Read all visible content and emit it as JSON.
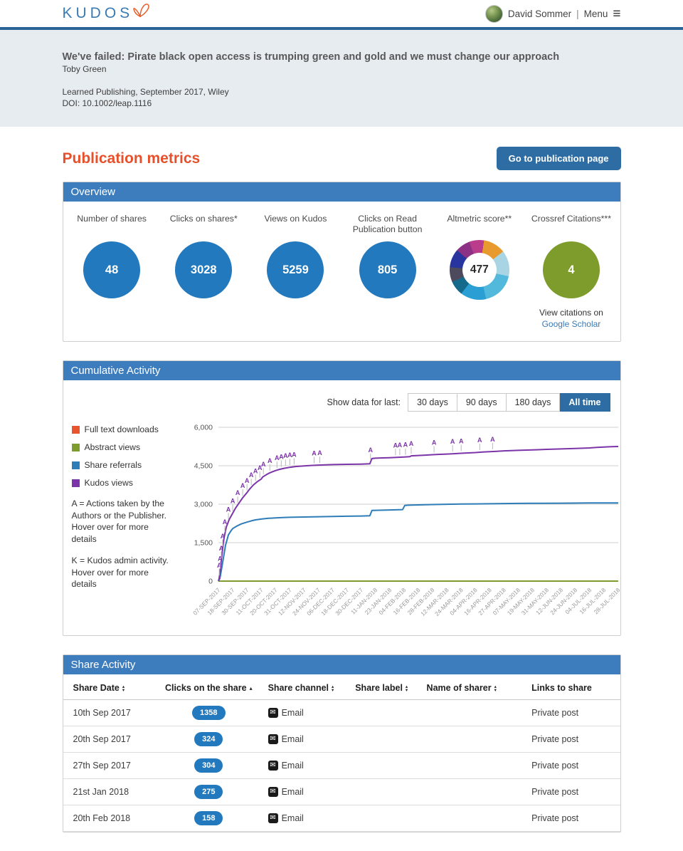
{
  "header": {
    "logo_text": "KUDOS",
    "user_name": "David Sommer",
    "separator": "|",
    "menu_label": "Menu",
    "menu_icon": "≡"
  },
  "publication": {
    "title": "We've failed: Pirate black open access is trumping green and gold and we must change our approach",
    "author": "Toby Green",
    "journal_line": "Learned Publishing, September 2017, Wiley",
    "doi_line": "DOI: 10.1002/leap.1116"
  },
  "page": {
    "title": "Publication metrics",
    "go_button_label": "Go to publication page"
  },
  "overview": {
    "header": "Overview",
    "metrics": [
      {
        "label": "Number of shares",
        "value": "48",
        "style": "blue-circle"
      },
      {
        "label": "Clicks on shares*",
        "value": "3028",
        "style": "blue-circle"
      },
      {
        "label": "Views on Kudos",
        "value": "5259",
        "style": "blue-circle"
      },
      {
        "label": "Clicks on Read Publication button",
        "value": "805",
        "style": "blue-circle"
      },
      {
        "label": "Altmetric score**",
        "value": "477",
        "style": "altmetric-donut"
      },
      {
        "label": "Crossref Citations***",
        "value": "4",
        "style": "green-circle"
      }
    ],
    "citations_note": "View citations on",
    "citations_link": "Google Scholar"
  },
  "cumulative": {
    "header": "Cumulative Activity",
    "filter_label": "Show data for last:",
    "filters": [
      {
        "label": "30 days",
        "active": false
      },
      {
        "label": "90 days",
        "active": false
      },
      {
        "label": "180 days",
        "active": false
      },
      {
        "label": "All time",
        "active": true
      }
    ],
    "legend": [
      {
        "label": "Full text downloads"
      },
      {
        "label": "Abstract views"
      },
      {
        "label": "Share referrals"
      },
      {
        "label": "Kudos views"
      }
    ],
    "note_a": "A = Actions taken by the Authors or the Publisher. Hover over for more details",
    "note_k": "K = Kudos admin activity. Hover over for more details"
  },
  "chart_data": {
    "type": "line",
    "title": "Cumulative Activity",
    "xlabel": "",
    "ylabel": "",
    "ylim": [
      0,
      6000
    ],
    "grid": true,
    "legend_position": "left",
    "y_ticks": [
      {
        "v": 0,
        "label": "0"
      },
      {
        "v": 1500,
        "label": "1,500"
      },
      {
        "v": 3000,
        "label": "3,000"
      },
      {
        "v": 4500,
        "label": "4,500"
      },
      {
        "v": 6000,
        "label": "6,000"
      }
    ],
    "x_tick_labels": [
      "07-SEP-2017",
      "18-SEP-2017",
      "30-SEP-2017",
      "11-OCT-2017",
      "20-OCT-2017",
      "31-OCT-2017",
      "12-NOV-2017",
      "24-NOV-2017",
      "06-DEC-2017",
      "18-DEC-2017",
      "30-DEC-2017",
      "11-JAN-2018",
      "23-JAN-2018",
      "04-FEB-2018",
      "16-FEB-2018",
      "28-FEB-2018",
      "12-MAR-2018",
      "24-MAR-2018",
      "04-APR-2018",
      "16-APR-2018",
      "27-APR-2018",
      "07-MAY-2018",
      "19-MAY-2018",
      "31-MAY-2018",
      "12-JUN-2018",
      "24-JUN-2018",
      "04-JUL-2018",
      "16-JUL-2018",
      "28-JUL-2018"
    ],
    "series": [
      {
        "name": "Full text downloads",
        "color": "#e8542c",
        "points": [
          [
            0,
            0
          ],
          [
            28,
            0
          ]
        ]
      },
      {
        "name": "Abstract views",
        "color": "#7e9c2c",
        "points": [
          [
            0,
            0
          ],
          [
            28,
            0
          ]
        ]
      },
      {
        "name": "Share referrals",
        "color": "#2e7cb8",
        "points": [
          [
            0,
            0
          ],
          [
            0.1,
            100
          ],
          [
            0.2,
            400
          ],
          [
            0.35,
            900
          ],
          [
            0.5,
            1400
          ],
          [
            0.7,
            1800
          ],
          [
            0.9,
            1980
          ],
          [
            1,
            2050
          ],
          [
            1.3,
            2150
          ],
          [
            1.6,
            2230
          ],
          [
            2,
            2300
          ],
          [
            2.3,
            2350
          ],
          [
            2.6,
            2390
          ],
          [
            3,
            2420
          ],
          [
            3.5,
            2450
          ],
          [
            4,
            2465
          ],
          [
            4.5,
            2478
          ],
          [
            5,
            2488
          ],
          [
            6,
            2500
          ],
          [
            7,
            2510
          ],
          [
            8,
            2520
          ],
          [
            9,
            2530
          ],
          [
            10,
            2540
          ],
          [
            10.6,
            2548
          ],
          [
            10.75,
            2755
          ],
          [
            11,
            2762
          ],
          [
            12,
            2775
          ],
          [
            12.9,
            2788
          ],
          [
            13.05,
            2950
          ],
          [
            13.3,
            2962
          ],
          [
            14,
            2972
          ],
          [
            15,
            2985
          ],
          [
            16,
            2998
          ],
          [
            17,
            3005
          ],
          [
            18,
            3012
          ],
          [
            19,
            3018
          ],
          [
            20,
            3024
          ],
          [
            21,
            3030
          ],
          [
            22,
            3034
          ],
          [
            24,
            3040
          ],
          [
            26,
            3046
          ],
          [
            28,
            3050
          ]
        ]
      },
      {
        "name": "Kudos views",
        "color": "#7c35a8",
        "points": [
          [
            0,
            0
          ],
          [
            0.05,
            100
          ],
          [
            0.1,
            300
          ],
          [
            0.18,
            700
          ],
          [
            0.28,
            1200
          ],
          [
            0.4,
            1700
          ],
          [
            0.55,
            2100
          ],
          [
            0.75,
            2400
          ],
          [
            1,
            2650
          ],
          [
            1.2,
            2850
          ],
          [
            1.45,
            3050
          ],
          [
            1.7,
            3250
          ],
          [
            2,
            3450
          ],
          [
            2.2,
            3600
          ],
          [
            2.45,
            3750
          ],
          [
            2.7,
            3870
          ],
          [
            3,
            3980
          ],
          [
            3.1,
            4060
          ],
          [
            3.3,
            4130
          ],
          [
            3.55,
            4210
          ],
          [
            3.8,
            4270
          ],
          [
            4,
            4310
          ],
          [
            4.3,
            4360
          ],
          [
            4.6,
            4400
          ],
          [
            5,
            4440
          ],
          [
            5.4,
            4470
          ],
          [
            6,
            4495
          ],
          [
            6.5,
            4510
          ],
          [
            7,
            4525
          ],
          [
            7.5,
            4535
          ],
          [
            8,
            4545
          ],
          [
            9,
            4555
          ],
          [
            10,
            4565
          ],
          [
            10.6,
            4575
          ],
          [
            10.75,
            4780
          ],
          [
            11,
            4795
          ],
          [
            11.5,
            4805
          ],
          [
            12,
            4815
          ],
          [
            12.5,
            4825
          ],
          [
            13,
            4840
          ],
          [
            13.4,
            4855
          ],
          [
            13.5,
            4885
          ],
          [
            14,
            4900
          ],
          [
            14.5,
            4915
          ],
          [
            15,
            4930
          ],
          [
            15.5,
            4945
          ],
          [
            16,
            4955
          ],
          [
            16.5,
            4970
          ],
          [
            17,
            4985
          ],
          [
            17.5,
            5000
          ],
          [
            18,
            5015
          ],
          [
            18.5,
            5035
          ],
          [
            19,
            5050
          ],
          [
            19.5,
            5065
          ],
          [
            20,
            5080
          ],
          [
            20.5,
            5090
          ],
          [
            21,
            5100
          ],
          [
            22,
            5120
          ],
          [
            23,
            5140
          ],
          [
            24,
            5155
          ],
          [
            25,
            5175
          ],
          [
            26,
            5195
          ],
          [
            26.5,
            5215
          ],
          [
            27,
            5230
          ],
          [
            27.5,
            5245
          ],
          [
            28,
            5250
          ]
        ]
      }
    ],
    "annotations": [
      {
        "x": 0.06,
        "label": "A"
      },
      {
        "x": 0.12,
        "label": "A"
      },
      {
        "x": 0.2,
        "label": "A"
      },
      {
        "x": 0.3,
        "label": "A"
      },
      {
        "x": 0.45,
        "label": "A"
      },
      {
        "x": 0.7,
        "label": "A"
      },
      {
        "x": 1.0,
        "label": "A"
      },
      {
        "x": 1.35,
        "label": "A"
      },
      {
        "x": 1.7,
        "label": "A"
      },
      {
        "x": 2.0,
        "label": "A"
      },
      {
        "x": 2.3,
        "label": "A"
      },
      {
        "x": 2.6,
        "label": "A"
      },
      {
        "x": 2.9,
        "label": "A"
      },
      {
        "x": 3.15,
        "label": "A"
      },
      {
        "x": 3.6,
        "label": "A"
      },
      {
        "x": 4.1,
        "label": "A"
      },
      {
        "x": 4.4,
        "label": "A"
      },
      {
        "x": 4.7,
        "label": "A"
      },
      {
        "x": 5.0,
        "label": "A"
      },
      {
        "x": 5.3,
        "label": "A"
      },
      {
        "x": 6.7,
        "label": "A"
      },
      {
        "x": 7.1,
        "label": "A"
      },
      {
        "x": 10.65,
        "label": "A"
      },
      {
        "x": 12.4,
        "label": "A"
      },
      {
        "x": 12.7,
        "label": "A"
      },
      {
        "x": 13.1,
        "label": "A"
      },
      {
        "x": 13.5,
        "label": "A"
      },
      {
        "x": 15.1,
        "label": "A"
      },
      {
        "x": 16.4,
        "label": "A"
      },
      {
        "x": 17.0,
        "label": "A"
      },
      {
        "x": 18.3,
        "label": "A"
      },
      {
        "x": 19.2,
        "label": "A"
      }
    ]
  },
  "share_table": {
    "header": "Share Activity",
    "email_icon": "✉",
    "columns": [
      {
        "label": "Share Date",
        "sort": "both"
      },
      {
        "label": "Clicks on the share",
        "sort": "asc"
      },
      {
        "label": "Share channel",
        "sort": "both"
      },
      {
        "label": "Share label",
        "sort": "both"
      },
      {
        "label": "Name of sharer",
        "sort": "both"
      },
      {
        "label": "Links to share",
        "sort": "none"
      }
    ],
    "rows": [
      {
        "date": "10th Sep 2017",
        "clicks": "1358",
        "channel": "Email",
        "share_label": "",
        "sharer": "",
        "links": "Private post"
      },
      {
        "date": "20th Sep 2017",
        "clicks": "324",
        "channel": "Email",
        "share_label": "",
        "sharer": "",
        "links": "Private post"
      },
      {
        "date": "27th Sep 2017",
        "clicks": "304",
        "channel": "Email",
        "share_label": "",
        "sharer": "",
        "links": "Private post"
      },
      {
        "date": "21st Jan 2018",
        "clicks": "275",
        "channel": "Email",
        "share_label": "",
        "sharer": "",
        "links": "Private post"
      },
      {
        "date": "20th Feb 2018",
        "clicks": "158",
        "channel": "Email",
        "share_label": "",
        "sharer": "",
        "links": "Private post"
      }
    ]
  },
  "colors": {
    "top_border_blue": "#2a6496",
    "panel_header_blue": "#3e7dbd",
    "button_blue": "#2e6da4",
    "circle_blue": "#2279bd",
    "circle_green": "#7e9c2c",
    "heading_orange": "#e8502b",
    "link_blue": "#3a7ab5",
    "logo_blue": "#3a7ab5",
    "logo_butterfly_orange": "#e8622d",
    "banner_background": "#e7ecf1"
  }
}
